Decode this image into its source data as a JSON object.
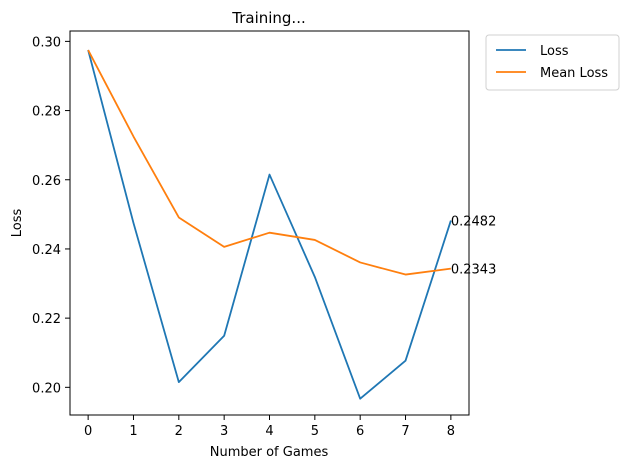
{
  "chart_data": {
    "type": "line",
    "title": "Training...",
    "xlabel": "Number of Games",
    "ylabel": "Loss",
    "x": [
      0,
      1,
      2,
      3,
      4,
      5,
      6,
      7,
      8
    ],
    "xlim": [
      -0.4,
      8.4
    ],
    "ylim": [
      0.192,
      0.303
    ],
    "xticks": [
      0,
      1,
      2,
      3,
      4,
      5,
      6,
      7,
      8
    ],
    "yticks": [
      0.2,
      0.22,
      0.24,
      0.26,
      0.28,
      0.3
    ],
    "ytick_labels": [
      "0.20",
      "0.22",
      "0.24",
      "0.26",
      "0.28",
      "0.30"
    ],
    "grid": false,
    "legend_position": "outside-top-right",
    "series": [
      {
        "name": "Loss",
        "color": "#1f77b4",
        "values": [
          0.2975,
          0.2475,
          0.2015,
          0.2149,
          0.2615,
          0.2319,
          0.1967,
          0.2077,
          0.2482
        ],
        "end_label": "0.2482"
      },
      {
        "name": "Mean Loss",
        "color": "#ff7f0e",
        "values": [
          0.2975,
          0.2725,
          0.2491,
          0.2406,
          0.2447,
          0.2426,
          0.2361,
          0.2326,
          0.2343
        ],
        "end_label": "0.2343"
      }
    ]
  }
}
